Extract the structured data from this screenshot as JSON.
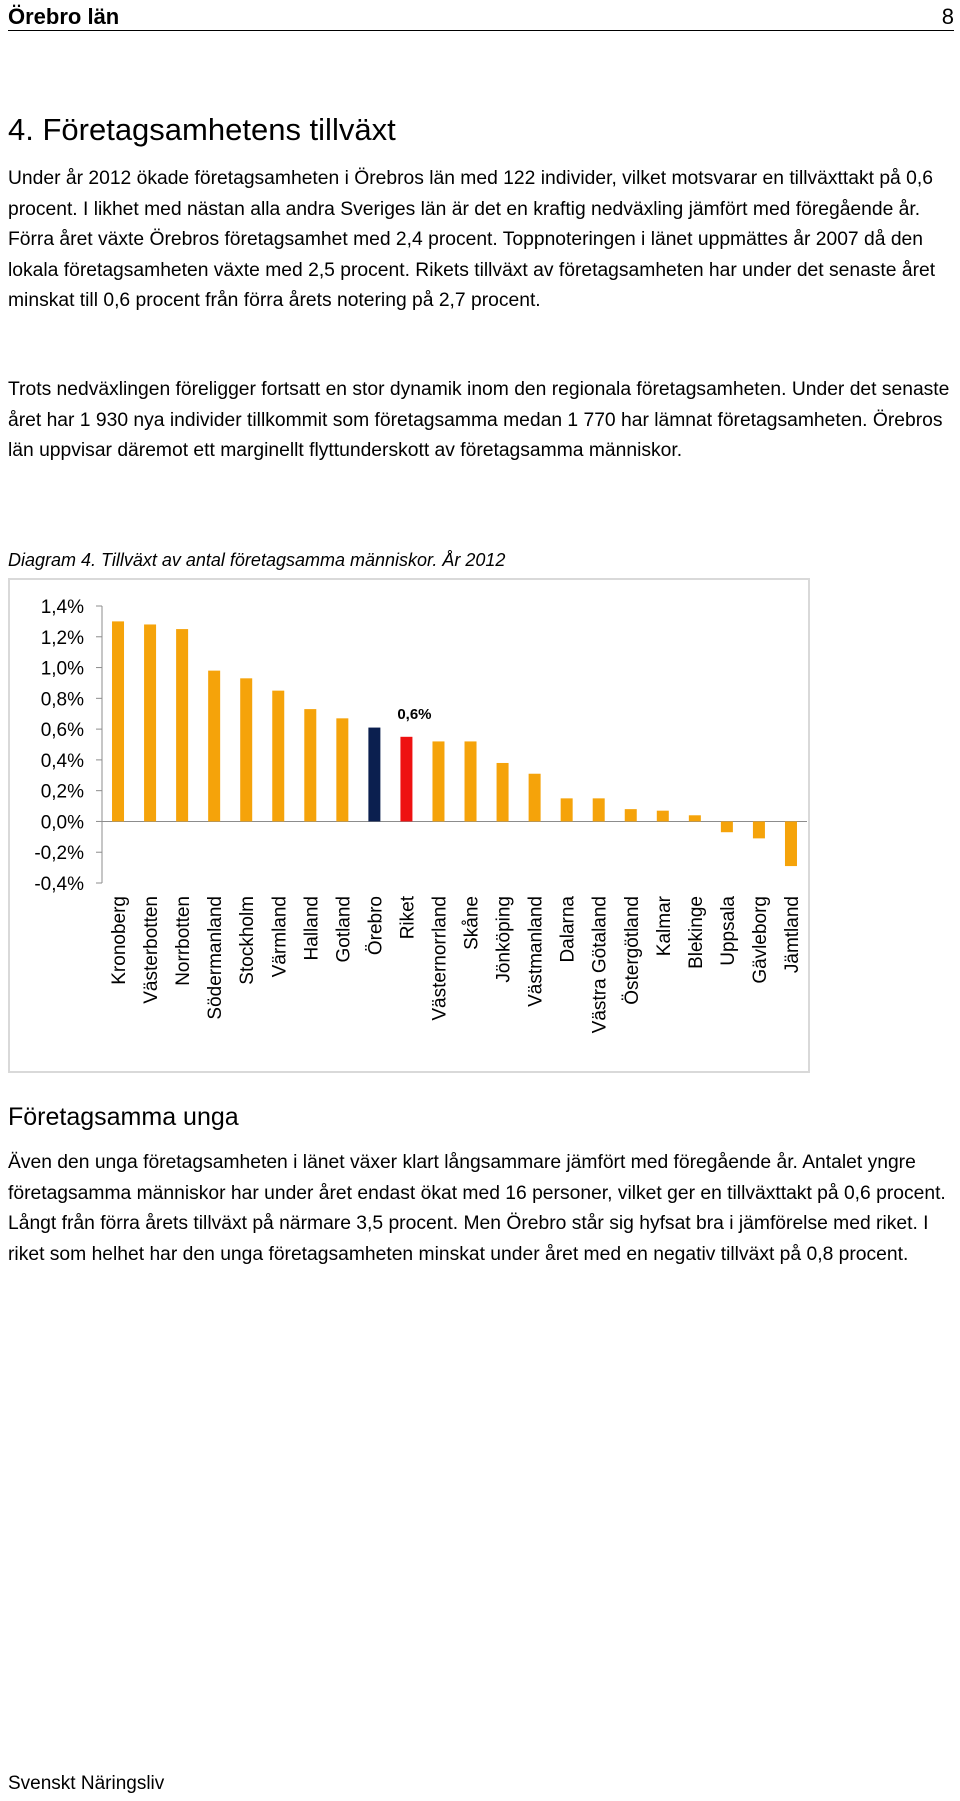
{
  "header": {
    "title": "Örebro län",
    "page_number": "8"
  },
  "section": {
    "heading": "4. Företagsamhetens tillväxt",
    "paragraphs": [
      "Under år 2012 ökade företagsamheten i Örebros län med 122 individer, vilket motsvarar en tillväxttakt på 0,6 procent. I likhet med nästan alla andra Sveriges län är det en kraftig nedväxling jämfört med föregående år. Förra året växte Örebros företagsamhet med 2,4 procent. Toppnoteringen i länet uppmättes år 2007 då den lokala företagsamheten växte med 2,5 procent. Rikets tillväxt av företagsamheten har under det senaste året minskat till 0,6 procent från förra årets notering på 2,7 procent.",
      "Trots nedväxlingen föreligger fortsatt en stor dynamik inom den regionala företagsamheten. Under det senaste året har 1 930 nya individer tillkommit som företagsamma medan 1 770 har lämnat företagsamheten. Örebros län uppvisar däremot ett marginellt flyttunderskott av företagsamma människor."
    ]
  },
  "chart_caption": "Diagram 4. Tillväxt av antal företagsamma människor. År 2012",
  "chart_data": {
    "type": "bar",
    "categories": [
      "Kronoberg",
      "Västerbotten",
      "Norrbotten",
      "Södermanland",
      "Stockholm",
      "Värmland",
      "Halland",
      "Gotland",
      "Örebro",
      "Riket",
      "Västernorrland",
      "Skåne",
      "Jönköping",
      "Västmanland",
      "Dalarna",
      "Västra Götaland",
      "Östergötland",
      "Kalmar",
      "Blekinge",
      "Uppsala",
      "Gävleborg",
      "Jämtland"
    ],
    "values": [
      1.3,
      1.28,
      1.25,
      0.98,
      0.93,
      0.85,
      0.73,
      0.67,
      0.61,
      0.55,
      0.52,
      0.52,
      0.38,
      0.31,
      0.15,
      0.15,
      0.08,
      0.07,
      0.04,
      -0.07,
      -0.11,
      -0.29
    ],
    "unit": "%",
    "ylim": [
      -0.4,
      1.4
    ],
    "yticks": [
      "1,4%",
      "1,2%",
      "1,0%",
      "0,8%",
      "0,6%",
      "0,4%",
      "0,2%",
      "0,0%",
      "-0,2%",
      "-0,4%"
    ],
    "ytick_values": [
      1.4,
      1.2,
      1.0,
      0.8,
      0.6,
      0.4,
      0.2,
      0.0,
      -0.2,
      -0.4
    ],
    "colors": {
      "default": "#f5a30a",
      "Örebro": "#0b1f4f",
      "Riket": "#ee1111"
    },
    "annotation": {
      "category": "Riket",
      "text": "0,6%"
    },
    "grid": false,
    "legend": "none"
  },
  "subsection": {
    "heading": "Företagsamma unga",
    "paragraph": "Även den unga företagsamheten i länet växer klart långsammare jämfört med föregående år. Antalet yngre företagsamma människor har under året endast ökat med 16 personer, vilket ger en tillväxttakt på 0,6 procent. Långt från förra årets tillväxt på närmare 3,5 procent. Men Örebro står sig hyfsat bra i jämförelse med riket. I riket som helhet har den unga företagsamheten minskat under året med en negativ tillväxt på 0,8 procent."
  },
  "footer": {
    "text": "Svenskt Näringsliv"
  }
}
